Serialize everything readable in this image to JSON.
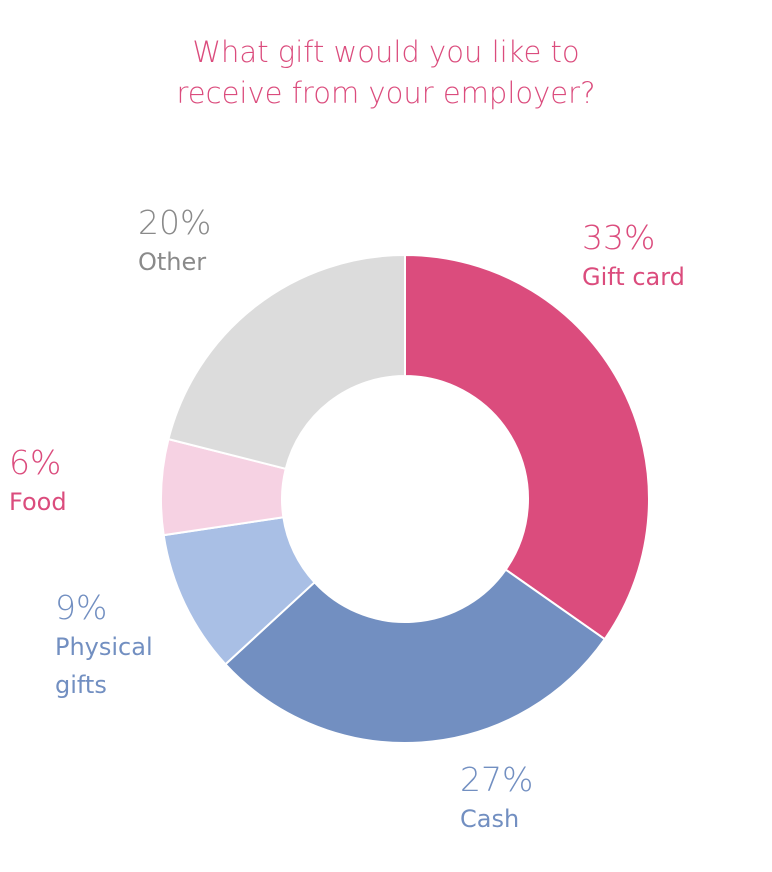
{
  "chart_data": {
    "type": "pie",
    "style": "donut",
    "title": "What gift would you like to receive from your employer?",
    "title_lines": [
      "What gift would you like to",
      "receive from your employer?"
    ],
    "slices": [
      {
        "label_lines": [
          "Gift card"
        ],
        "pct_text": "33%",
        "value": 33,
        "color": "#db4c7d",
        "text_color": "#db4c7d"
      },
      {
        "label_lines": [
          "Cash"
        ],
        "pct_text": "27%",
        "value": 27,
        "color": "#728fc1",
        "text_color": "#728fc1"
      },
      {
        "label_lines": [
          "Physical",
          "gifts"
        ],
        "pct_text": "9%",
        "value": 9,
        "color": "#a9bfe5",
        "text_color": "#728fc1"
      },
      {
        "label_lines": [
          "Food"
        ],
        "pct_text": "6%",
        "value": 6,
        "color": "#f6d2e3",
        "text_color": "#db4c7d"
      },
      {
        "label_lines": [
          "Other"
        ],
        "pct_text": "20%",
        "value": 20,
        "color": "#dcdcdc",
        "text_color": "#8a8a8a"
      }
    ],
    "title_color": "#db4c7d"
  }
}
